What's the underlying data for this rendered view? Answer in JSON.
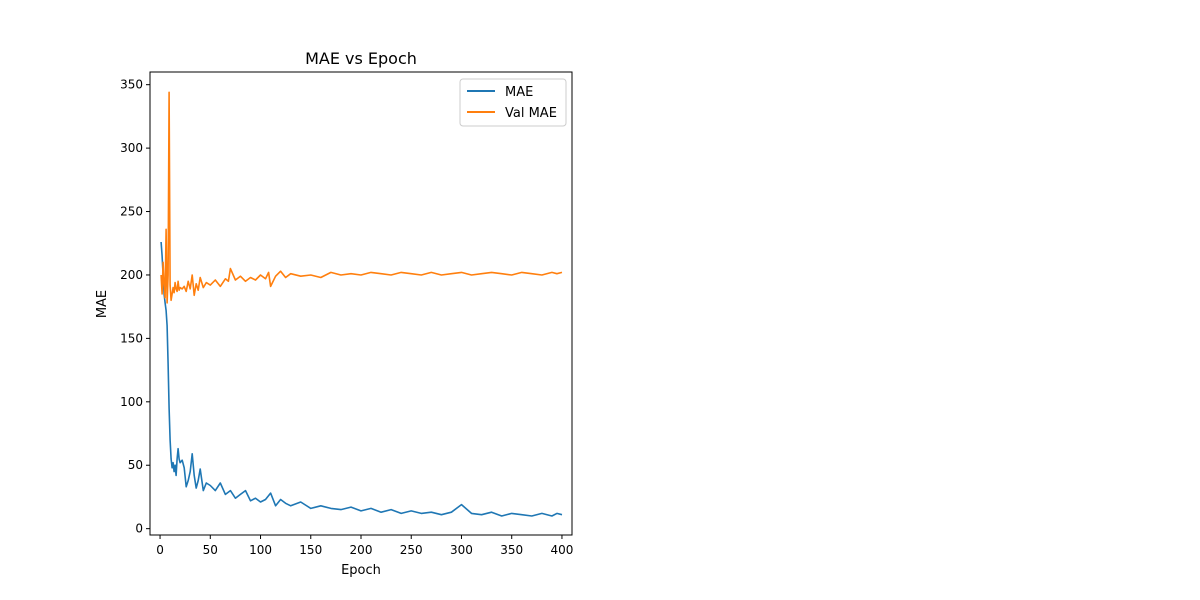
{
  "chart_data": {
    "type": "line",
    "title": "MAE vs Epoch",
    "xlabel": "Epoch",
    "ylabel": "MAE",
    "xlim": [
      -10,
      410
    ],
    "ylim": [
      -5,
      360
    ],
    "x_ticks": [
      0,
      50,
      100,
      150,
      200,
      250,
      300,
      350,
      400
    ],
    "y_ticks": [
      0,
      50,
      100,
      150,
      200,
      250,
      300,
      350
    ],
    "grid": false,
    "legend_position": "upper right",
    "series": [
      {
        "name": "MAE",
        "color": "#1f77b4",
        "x": [
          1,
          2,
          3,
          4,
          5,
          6,
          7,
          8,
          9,
          10,
          11,
          12,
          13,
          14,
          15,
          16,
          17,
          18,
          19,
          20,
          22,
          24,
          26,
          28,
          30,
          32,
          34,
          36,
          38,
          40,
          43,
          46,
          50,
          55,
          60,
          65,
          70,
          75,
          80,
          85,
          90,
          95,
          100,
          105,
          110,
          115,
          120,
          125,
          130,
          140,
          150,
          160,
          170,
          180,
          190,
          200,
          210,
          220,
          230,
          240,
          250,
          260,
          270,
          280,
          290,
          300,
          310,
          320,
          330,
          340,
          350,
          360,
          370,
          380,
          390,
          395,
          400
        ],
        "values": [
          226,
          215,
          200,
          185,
          178,
          172,
          160,
          130,
          95,
          70,
          55,
          48,
          52,
          45,
          50,
          42,
          55,
          63,
          55,
          52,
          54,
          48,
          33,
          38,
          45,
          59,
          42,
          32,
          38,
          47,
          30,
          36,
          34,
          30,
          36,
          27,
          30,
          24,
          27,
          30,
          22,
          24,
          21,
          23,
          28,
          18,
          23,
          20,
          18,
          21,
          16,
          18,
          16,
          15,
          17,
          14,
          16,
          13,
          15,
          12,
          14,
          12,
          13,
          11,
          13,
          19,
          12,
          11,
          13,
          10,
          12,
          11,
          10,
          12,
          10,
          12,
          11
        ]
      },
      {
        "name": "Val MAE",
        "color": "#ff7f0e",
        "x": [
          1,
          2,
          3,
          4,
          5,
          6,
          7,
          8,
          9,
          10,
          11,
          12,
          13,
          14,
          15,
          16,
          17,
          18,
          19,
          20,
          22,
          24,
          26,
          28,
          30,
          32,
          34,
          36,
          38,
          40,
          43,
          46,
          50,
          55,
          60,
          65,
          68,
          70,
          75,
          80,
          85,
          90,
          95,
          100,
          105,
          108,
          110,
          115,
          120,
          125,
          130,
          140,
          150,
          160,
          170,
          180,
          190,
          200,
          210,
          220,
          230,
          240,
          250,
          260,
          270,
          280,
          290,
          300,
          310,
          320,
          330,
          340,
          350,
          360,
          370,
          380,
          390,
          395,
          400
        ],
        "values": [
          200,
          185,
          210,
          192,
          182,
          236,
          178,
          200,
          344,
          192,
          180,
          185,
          190,
          186,
          194,
          189,
          187,
          195,
          188,
          190,
          189,
          191,
          187,
          195,
          189,
          200,
          184,
          193,
          188,
          198,
          190,
          194,
          192,
          196,
          191,
          197,
          195,
          205,
          196,
          199,
          195,
          198,
          196,
          200,
          197,
          202,
          191,
          199,
          203,
          198,
          201,
          199,
          200,
          198,
          202,
          200,
          201,
          200,
          202,
          201,
          200,
          202,
          201,
          200,
          202,
          200,
          201,
          202,
          200,
          201,
          202,
          201,
          200,
          202,
          201,
          200,
          202,
          201,
          202
        ]
      }
    ]
  }
}
